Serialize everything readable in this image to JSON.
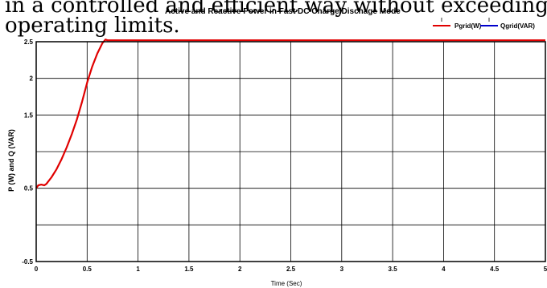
{
  "snippet": {
    "line1": "in a controlled and efficient way without exceeding safe",
    "line2": "operating limits."
  },
  "colors": {
    "pgrid": "#e00000",
    "qgrid": "#0000cc",
    "grid": "#000000",
    "axis": "#000000"
  },
  "chart_data": {
    "type": "line",
    "title": "Active and Reactive Power in Fast DC Charge/Dischage Mode",
    "xlabel": "Time (Sec)",
    "ylabel": "P (W) and Q (VAR)",
    "xlim": [
      0,
      5
    ],
    "ylim": [
      -0.5,
      2.5
    ],
    "xticks": [
      0,
      0.5,
      1,
      1.5,
      2,
      2.5,
      3,
      3.5,
      4,
      4.5,
      5
    ],
    "xtick_labels": [
      "0",
      "0.5",
      "1",
      "1.5",
      "2",
      "2.5",
      "3",
      "3.5",
      "4",
      "4.5",
      "5"
    ],
    "yticks": [
      -0.5,
      0,
      0.5,
      1,
      1.5,
      2,
      2.5
    ],
    "ytick_labels": [
      "-0.5",
      "",
      "0.5",
      "",
      "1.5",
      "2",
      "2.5"
    ],
    "grid": true,
    "legend": "top-right",
    "series": [
      {
        "name": "Pgrid(W)",
        "color": "#e00000",
        "x": [
          0,
          0.02,
          0.05,
          0.08,
          0.1,
          0.15,
          0.2,
          0.25,
          0.3,
          0.35,
          0.4,
          0.45,
          0.5,
          0.55,
          0.6,
          0.65,
          0.68,
          0.7,
          1.0,
          1.5,
          2.0,
          2.5,
          3.0,
          3.5,
          4.0,
          4.5,
          5.0
        ],
        "y": [
          0.5,
          0.54,
          0.55,
          0.54,
          0.56,
          0.65,
          0.76,
          0.9,
          1.06,
          1.24,
          1.44,
          1.68,
          1.94,
          2.16,
          2.34,
          2.48,
          2.53,
          2.52,
          2.52,
          2.52,
          2.52,
          2.52,
          2.52,
          2.52,
          2.52,
          2.52,
          2.52
        ]
      },
      {
        "name": "Qgrid(VAR)",
        "color": "#0000cc",
        "x": [],
        "y": []
      }
    ]
  }
}
